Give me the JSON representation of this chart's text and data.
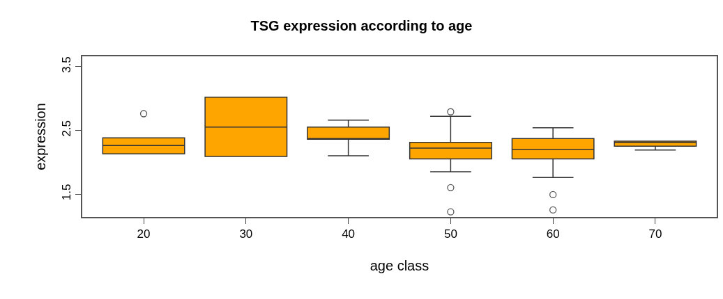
{
  "chart_data": {
    "type": "box",
    "title": "TSG expression according to age",
    "xlabel": "age class",
    "ylabel": "expression",
    "categories": [
      "20",
      "30",
      "40",
      "50",
      "60",
      "70"
    ],
    "color": "#ffa500",
    "boxes": [
      {
        "low": 2.13,
        "q1": 2.13,
        "median": 2.26,
        "q3": 2.38,
        "high": 2.38,
        "outliers": [
          2.76
        ]
      },
      {
        "low": 2.09,
        "q1": 2.09,
        "median": 2.55,
        "q3": 3.02,
        "high": 3.02
      },
      {
        "low": 2.1,
        "q1": 2.36,
        "median": 2.37,
        "q3": 2.55,
        "high": 2.66
      },
      {
        "low": 1.85,
        "q1": 2.05,
        "median": 2.22,
        "q3": 2.31,
        "high": 2.72,
        "outliers": [
          2.79,
          1.6,
          1.22
        ]
      },
      {
        "low": 1.76,
        "q1": 2.05,
        "median": 2.2,
        "q3": 2.37,
        "high": 2.54,
        "outliers": [
          1.49,
          1.25
        ]
      },
      {
        "low": 2.19,
        "q1": 2.25,
        "median": 2.31,
        "q3": 2.33,
        "high": 2.33
      }
    ],
    "ylim": [
      1.14,
      3.66
    ],
    "yticks": [
      1.5,
      2.5,
      3.5
    ]
  }
}
